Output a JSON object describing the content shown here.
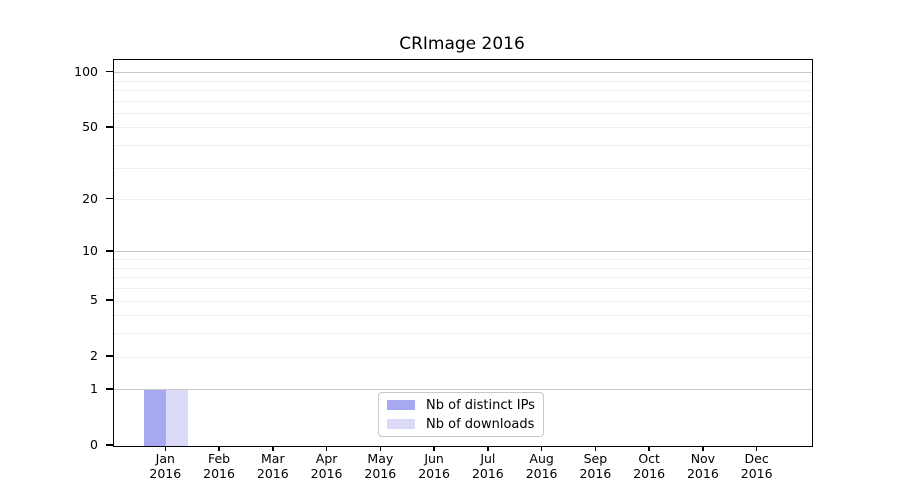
{
  "title": "CRImage 2016",
  "chart_data": {
    "type": "bar",
    "title": "CRImage 2016",
    "categories": [
      "Jan",
      "Feb",
      "Mar",
      "Apr",
      "May",
      "Jun",
      "Jul",
      "Aug",
      "Sep",
      "Oct",
      "Nov",
      "Dec"
    ],
    "category_year": "2016",
    "series": [
      {
        "name": "Nb of distinct IPs",
        "color": "#a8a8f2",
        "values": [
          1,
          0,
          0,
          0,
          0,
          0,
          0,
          0,
          0,
          0,
          0,
          0
        ]
      },
      {
        "name": "Nb of downloads",
        "color": "#dbdbf7",
        "values": [
          1,
          0,
          0,
          0,
          0,
          0,
          0,
          0,
          0,
          0,
          0,
          0
        ]
      }
    ],
    "yscale": "log1p",
    "ylim": [
      0,
      117
    ],
    "yticks": [
      0,
      1,
      2,
      5,
      10,
      20,
      50,
      100
    ],
    "grid": {
      "orientation": "horizontal",
      "major_at": [
        1,
        10,
        100
      ],
      "minor_at": [
        2,
        3,
        4,
        5,
        6,
        7,
        8,
        9,
        20,
        30,
        40,
        50,
        60,
        70,
        80,
        90
      ]
    },
    "legend_position": "lower center",
    "colors": {
      "major_grid": "#c8c8c8",
      "minor_grid": "#efefef",
      "axis": "#000000",
      "text": "#000000"
    }
  }
}
